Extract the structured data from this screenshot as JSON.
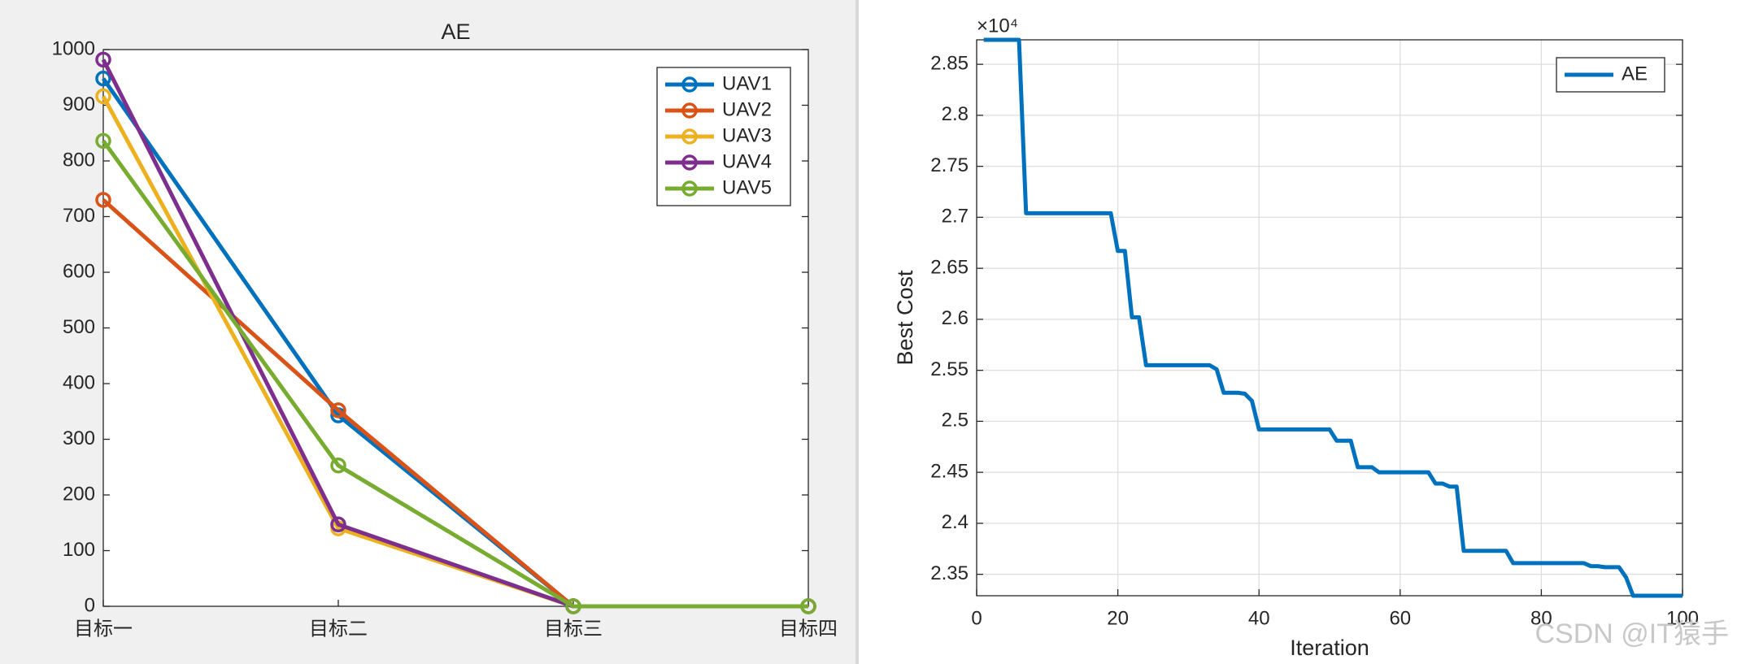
{
  "chart_data": [
    {
      "type": "line",
      "title": "AE",
      "markers": true,
      "grid": false,
      "legend": "upper right",
      "categories": [
        "目标一",
        "目标二",
        "目标三",
        "目标四"
      ],
      "ylim": [
        0,
        1000
      ],
      "yticks": [
        0,
        100,
        200,
        300,
        400,
        500,
        600,
        700,
        800,
        900,
        1000
      ],
      "series": [
        {
          "name": "UAV1",
          "color": "#0072BD",
          "values": [
            948,
            343,
            0,
            0
          ]
        },
        {
          "name": "UAV2",
          "color": "#D95319",
          "values": [
            730,
            352,
            0,
            0
          ]
        },
        {
          "name": "UAV3",
          "color": "#EDB120",
          "values": [
            916,
            140,
            0,
            0
          ]
        },
        {
          "name": "UAV4",
          "color": "#7E2F8E",
          "values": [
            982,
            147,
            0,
            0
          ]
        },
        {
          "name": "UAV5",
          "color": "#77AC30",
          "values": [
            836,
            253,
            0,
            0
          ]
        }
      ]
    },
    {
      "type": "line",
      "markers": false,
      "grid": true,
      "legend": "upper right",
      "x_label": "Iteration",
      "y_label": "Best Cost",
      "y_multiplier": "×10⁴",
      "watermark": "CSDN @IT猿手",
      "x": [
        1,
        2,
        3,
        4,
        5,
        6,
        7,
        8,
        9,
        10,
        11,
        12,
        13,
        14,
        15,
        16,
        17,
        18,
        19,
        20,
        21,
        22,
        23,
        24,
        25,
        26,
        27,
        28,
        29,
        30,
        31,
        32,
        33,
        34,
        35,
        36,
        37,
        38,
        39,
        40,
        41,
        42,
        43,
        44,
        45,
        46,
        47,
        48,
        49,
        50,
        51,
        52,
        53,
        54,
        55,
        56,
        57,
        58,
        59,
        60,
        61,
        62,
        63,
        64,
        65,
        66,
        67,
        68,
        69,
        70,
        71,
        72,
        73,
        74,
        75,
        76,
        77,
        78,
        79,
        80,
        81,
        82,
        83,
        84,
        85,
        86,
        87,
        88,
        89,
        90,
        91,
        92,
        93,
        94,
        95,
        96,
        97,
        98,
        99,
        100
      ],
      "xlim": [
        0,
        100
      ],
      "xticks": [
        0,
        20,
        40,
        60,
        80,
        100
      ],
      "ylim": [
        2.329,
        2.874
      ],
      "yticks": [
        2.35,
        2.4,
        2.45,
        2.5,
        2.55,
        2.6,
        2.65,
        2.7,
        2.75,
        2.8,
        2.85
      ],
      "series": [
        {
          "name": "AE",
          "color": "#0072BD",
          "values": [
            2.874,
            2.874,
            2.874,
            2.874,
            2.874,
            2.874,
            2.704,
            2.704,
            2.704,
            2.704,
            2.704,
            2.704,
            2.704,
            2.704,
            2.704,
            2.704,
            2.704,
            2.704,
            2.704,
            2.667,
            2.667,
            2.602,
            2.602,
            2.555,
            2.555,
            2.555,
            2.555,
            2.555,
            2.555,
            2.555,
            2.555,
            2.555,
            2.555,
            2.551,
            2.528,
            2.528,
            2.528,
            2.527,
            2.52,
            2.492,
            2.492,
            2.492,
            2.492,
            2.492,
            2.492,
            2.492,
            2.492,
            2.492,
            2.492,
            2.492,
            2.481,
            2.481,
            2.481,
            2.455,
            2.455,
            2.455,
            2.45,
            2.45,
            2.45,
            2.45,
            2.45,
            2.45,
            2.45,
            2.45,
            2.439,
            2.439,
            2.436,
            2.436,
            2.373,
            2.373,
            2.373,
            2.373,
            2.373,
            2.373,
            2.373,
            2.361,
            2.361,
            2.361,
            2.361,
            2.361,
            2.361,
            2.361,
            2.361,
            2.361,
            2.361,
            2.361,
            2.358,
            2.358,
            2.357,
            2.357,
            2.357,
            2.347,
            2.329,
            2.329,
            2.329,
            2.329,
            2.329,
            2.329,
            2.329,
            2.329
          ]
        }
      ]
    }
  ]
}
